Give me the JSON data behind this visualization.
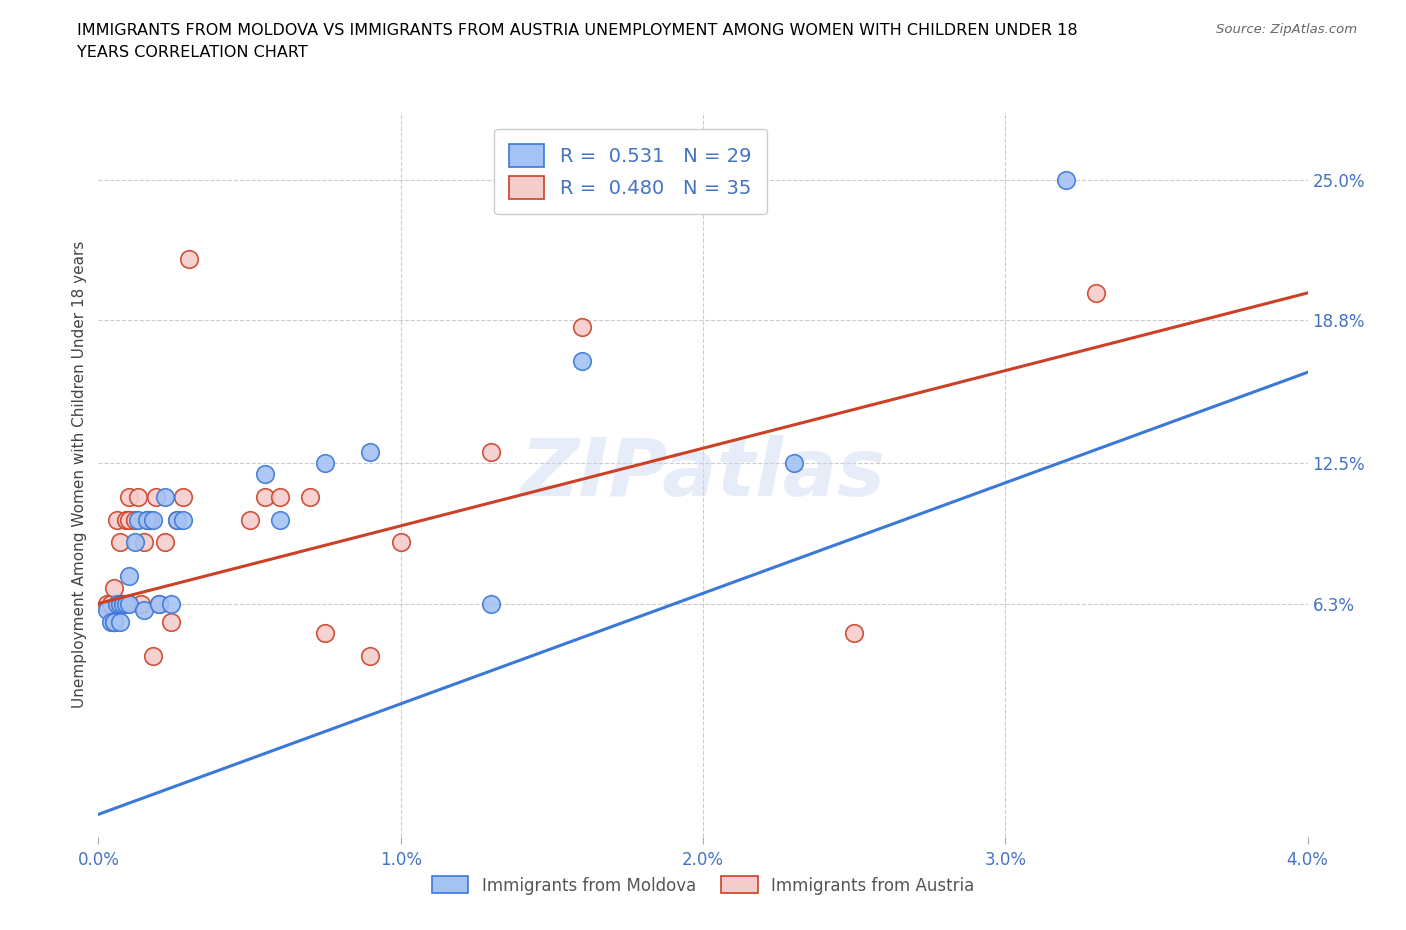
{
  "title": "IMMIGRANTS FROM MOLDOVA VS IMMIGRANTS FROM AUSTRIA UNEMPLOYMENT AMONG WOMEN WITH CHILDREN UNDER 18\nYEARS CORRELATION CHART",
  "source": "Source: ZipAtlas.com",
  "ylabel": "Unemployment Among Women with Children Under 18 years",
  "xlim": [
    0.0,
    0.04
  ],
  "ylim": [
    -0.04,
    0.28
  ],
  "yticks": [
    0.063,
    0.125,
    0.188,
    0.25
  ],
  "ytick_labels": [
    "6.3%",
    "12.5%",
    "18.8%",
    "25.0%"
  ],
  "xticks": [
    0.0,
    0.01,
    0.02,
    0.03,
    0.04
  ],
  "xtick_labels": [
    "0.0%",
    "1.0%",
    "2.0%",
    "3.0%",
    "4.0%"
  ],
  "watermark": "ZIPatlas",
  "legend_r1": "R =  0.531   N = 29",
  "legend_r2": "R =  0.480   N = 35",
  "color_moldova": "#A4C2F4",
  "color_austria": "#F4CCCC",
  "color_moldova_line": "#3C78D8",
  "color_austria_line": "#CC4125",
  "moldova_x": [
    0.0003,
    0.0004,
    0.0005,
    0.0005,
    0.0006,
    0.0007,
    0.0007,
    0.0008,
    0.0009,
    0.001,
    0.001,
    0.0012,
    0.0013,
    0.0015,
    0.0016,
    0.0018,
    0.002,
    0.0022,
    0.0024,
    0.0026,
    0.0028,
    0.0055,
    0.006,
    0.0075,
    0.009,
    0.013,
    0.016,
    0.023,
    0.032
  ],
  "moldova_y": [
    0.06,
    0.055,
    0.055,
    0.055,
    0.063,
    0.055,
    0.063,
    0.063,
    0.063,
    0.063,
    0.075,
    0.09,
    0.1,
    0.06,
    0.1,
    0.1,
    0.063,
    0.11,
    0.063,
    0.1,
    0.1,
    0.12,
    0.1,
    0.125,
    0.13,
    0.063,
    0.17,
    0.125,
    0.25
  ],
  "austria_x": [
    0.0003,
    0.0004,
    0.0005,
    0.0005,
    0.0006,
    0.0007,
    0.0008,
    0.0009,
    0.001,
    0.001,
    0.0012,
    0.0013,
    0.0014,
    0.0015,
    0.0016,
    0.0017,
    0.0018,
    0.0019,
    0.002,
    0.0022,
    0.0024,
    0.0026,
    0.0028,
    0.003,
    0.005,
    0.0055,
    0.006,
    0.007,
    0.0075,
    0.009,
    0.01,
    0.013,
    0.016,
    0.025,
    0.033
  ],
  "austria_y": [
    0.063,
    0.063,
    0.07,
    0.055,
    0.1,
    0.09,
    0.063,
    0.1,
    0.1,
    0.11,
    0.1,
    0.11,
    0.063,
    0.09,
    0.1,
    0.1,
    0.04,
    0.11,
    0.063,
    0.09,
    0.055,
    0.1,
    0.11,
    0.215,
    0.1,
    0.11,
    0.11,
    0.11,
    0.05,
    0.04,
    0.09,
    0.13,
    0.185,
    0.05,
    0.2
  ],
  "moldova_line_x": [
    0.0,
    0.04
  ],
  "moldova_line_y": [
    -0.03,
    0.165
  ],
  "austria_line_x": [
    0.0,
    0.04
  ],
  "austria_line_y": [
    0.063,
    0.2
  ]
}
